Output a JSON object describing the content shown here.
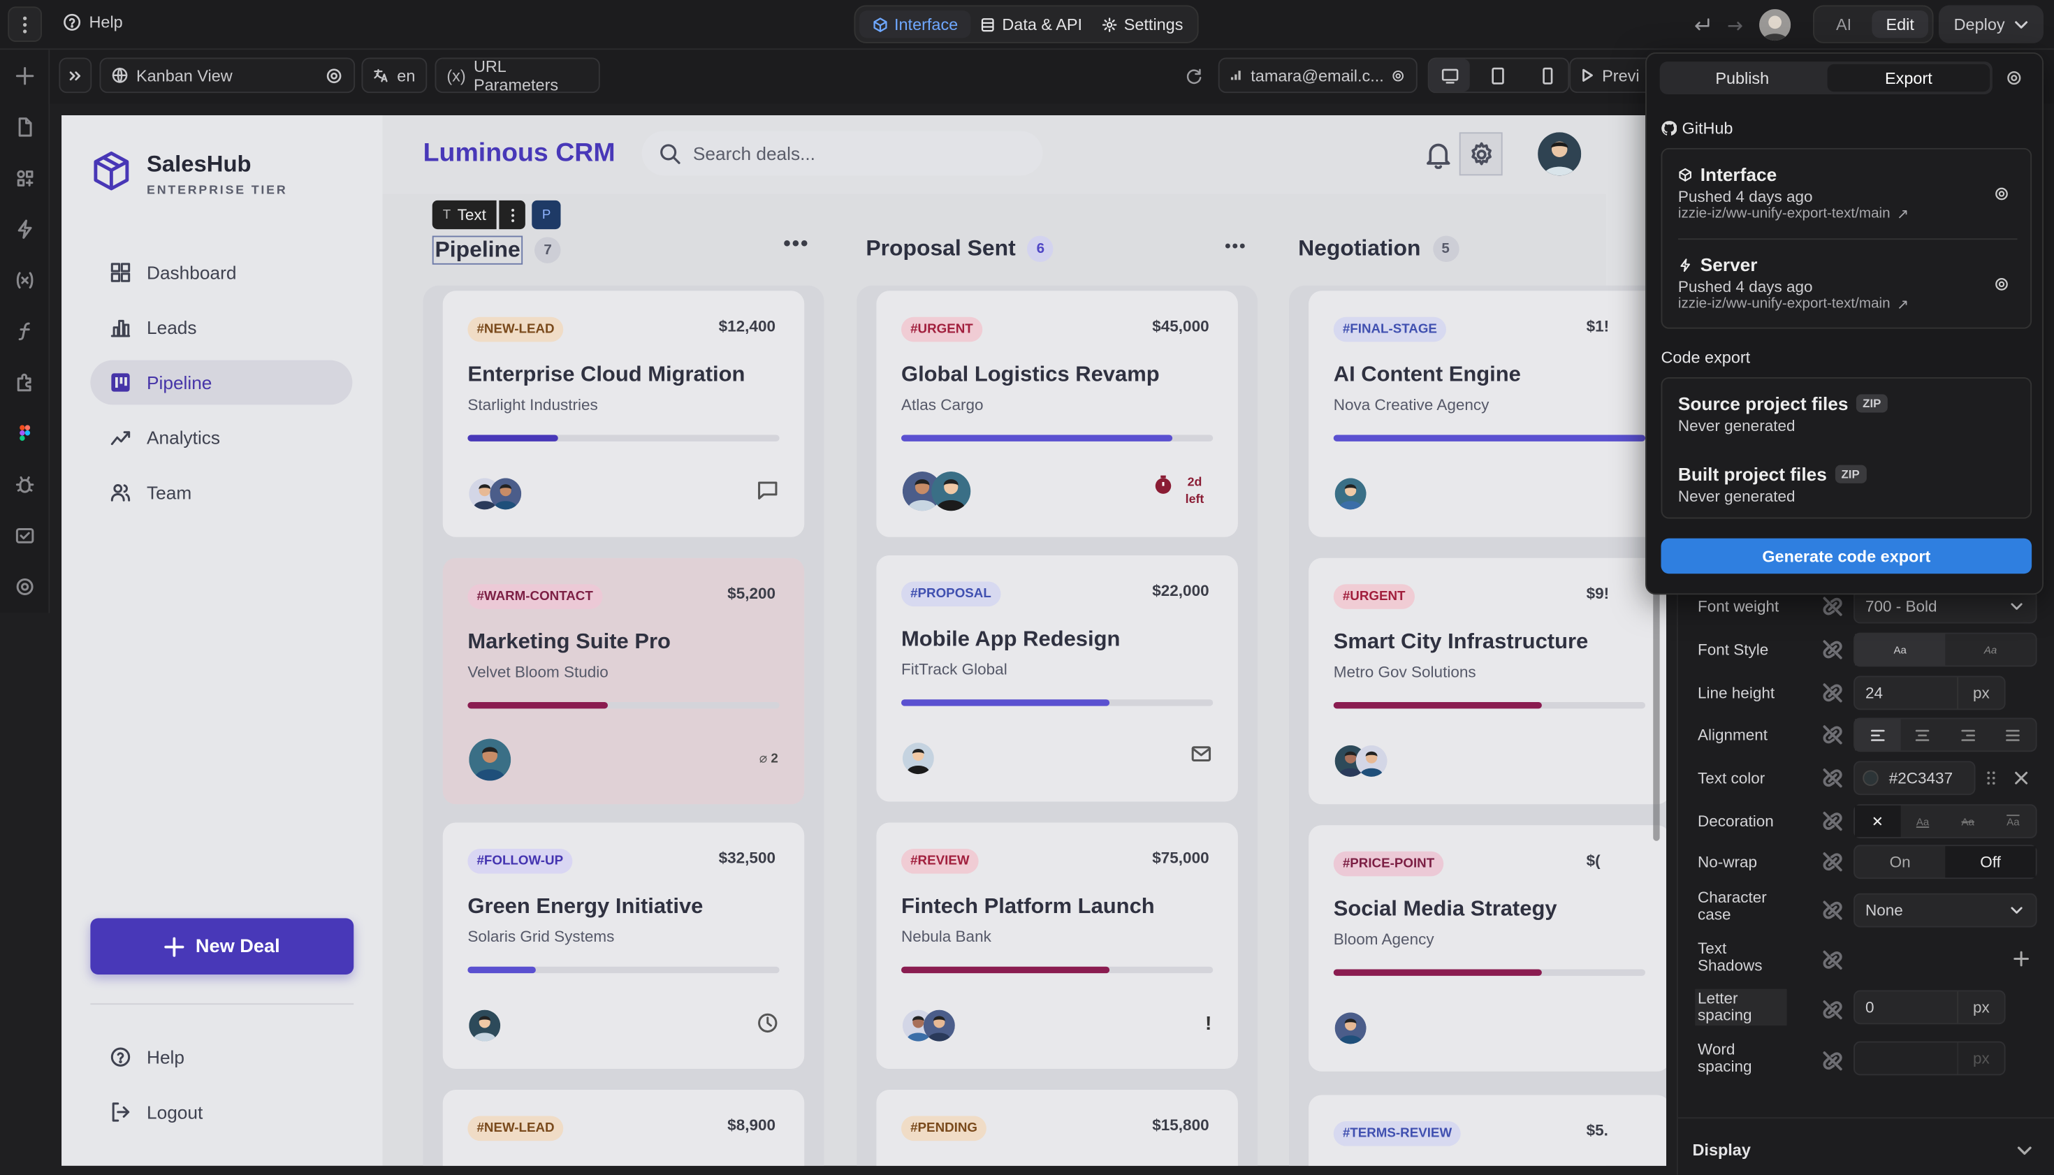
{
  "topbar": {
    "help": "Help",
    "tabs": [
      "Interface",
      "Data & API",
      "Settings"
    ],
    "mode_ai": "AI",
    "mode_edit": "Edit",
    "deploy": "Deploy"
  },
  "toolbar2": {
    "page": "Kanban View",
    "lang": "en",
    "url_params": "URL Parameters",
    "user": "tamara@email.c...",
    "preview": "Previ"
  },
  "app": {
    "brand": "SalesHub",
    "tier": "ENTERPRISE TIER",
    "title": "Luminous CRM",
    "search_placeholder": "Search deals...",
    "nav": [
      "Dashboard",
      "Leads",
      "Pipeline",
      "Analytics",
      "Team"
    ],
    "new_deal": "New Deal",
    "bottom_nav": [
      "Help",
      "Logout"
    ],
    "selection": {
      "type": "Text",
      "badge": "P"
    }
  },
  "columns": [
    {
      "name": "Pipeline",
      "count": "7",
      "menu": "•••",
      "cards": [
        {
          "tag": "#NEW-LEAD",
          "amount": "$12,400",
          "title": "Enterprise Cloud Migration",
          "company": "Starlight Industries",
          "progress": 0.29,
          "color": "#4838b8"
        },
        {
          "tag": "#WARM-CONTACT",
          "amount": "$5,200",
          "title": "Marketing Suite Pro",
          "company": "Velvet Bloom Studio",
          "progress": 0.45,
          "color": "#8a1c50",
          "meta": "2"
        },
        {
          "tag": "#FOLLOW-UP",
          "amount": "$32,500",
          "title": "Green Energy Initiative",
          "company": "Solaris Grid Systems",
          "progress": 0.22,
          "color": "#5a50d0"
        },
        {
          "tag": "#NEW-LEAD",
          "amount": "$8,900"
        }
      ]
    },
    {
      "name": "Proposal Sent",
      "count": "6",
      "menu": "•••",
      "cards": [
        {
          "tag": "#URGENT",
          "amount": "$45,000",
          "title": "Global Logistics Revamp",
          "company": "Atlas Cargo",
          "progress": 0.87,
          "color": "#5a50d0",
          "meta": "2d left"
        },
        {
          "tag": "#PROPOSAL",
          "amount": "$22,000",
          "title": "Mobile App Redesign",
          "company": "FitTrack Global",
          "progress": 0.67,
          "color": "#5a50d0"
        },
        {
          "tag": "#REVIEW",
          "amount": "$75,000",
          "title": "Fintech Platform Launch",
          "company": "Nebula Bank",
          "progress": 0.67,
          "color": "#8a1c50",
          "meta": "!"
        },
        {
          "tag": "#PENDING",
          "amount": "$15,800"
        }
      ]
    },
    {
      "name": "Negotiation",
      "count": "5",
      "cards": [
        {
          "tag": "#FINAL-STAGE",
          "amount": "$1!",
          "title": "AI Content Engine",
          "company": "Nova Creative Agency",
          "progress": 1.0,
          "color": "#5a50d0"
        },
        {
          "tag": "#URGENT",
          "amount": "$9!",
          "title": "Smart City Infrastructure",
          "company": "Metro Gov Solutions",
          "progress": 0.67,
          "color": "#8a1c50"
        },
        {
          "tag": "#PRICE-POINT",
          "amount": "$(",
          "title": "Social Media Strategy",
          "company": "Bloom Agency",
          "progress": 0.67,
          "color": "#8a1c50"
        },
        {
          "tag": "#TERMS-REVIEW",
          "amount": "$5."
        }
      ]
    }
  ],
  "export_panel": {
    "tab_publish": "Publish",
    "tab_export": "Export",
    "github": "GitHub",
    "repos": [
      {
        "name": "Interface",
        "status": "Pushed 4 days ago",
        "path": "izzie-iz/ww-unify-export-text/main"
      },
      {
        "name": "Server",
        "status": "Pushed 4 days ago",
        "path": "izzie-iz/ww-unify-export-text/main"
      }
    ],
    "code_export": "Code export",
    "files": [
      {
        "name": "Source project files",
        "badge": "ZIP",
        "status": "Never generated"
      },
      {
        "name": "Built project files",
        "badge": "ZIP",
        "status": "Never generated"
      }
    ],
    "generate": "Generate code export"
  },
  "properties": {
    "font_weight": {
      "label": "Font weight",
      "value": "700 - Bold"
    },
    "font_style": {
      "label": "Font Style",
      "options": [
        "Aa",
        "Aa"
      ]
    },
    "line_height": {
      "label": "Line height",
      "value": "24",
      "unit": "px"
    },
    "alignment": {
      "label": "Alignment"
    },
    "text_color": {
      "label": "Text color",
      "value": "#2C3437"
    },
    "decoration": {
      "label": "Decoration",
      "options": [
        "✕",
        "Aa",
        "Aa",
        "Aa"
      ]
    },
    "no_wrap": {
      "label": "No-wrap",
      "on": "On",
      "off": "Off"
    },
    "character_case": {
      "label": "Character case",
      "value": "None"
    },
    "text_shadows": {
      "label": "Text Shadows"
    },
    "letter_spacing": {
      "label": "Letter spacing",
      "value": "0",
      "unit": "px"
    },
    "word_spacing": {
      "label": "Word spacing",
      "value": "",
      "unit": "px"
    },
    "display": "Display"
  }
}
